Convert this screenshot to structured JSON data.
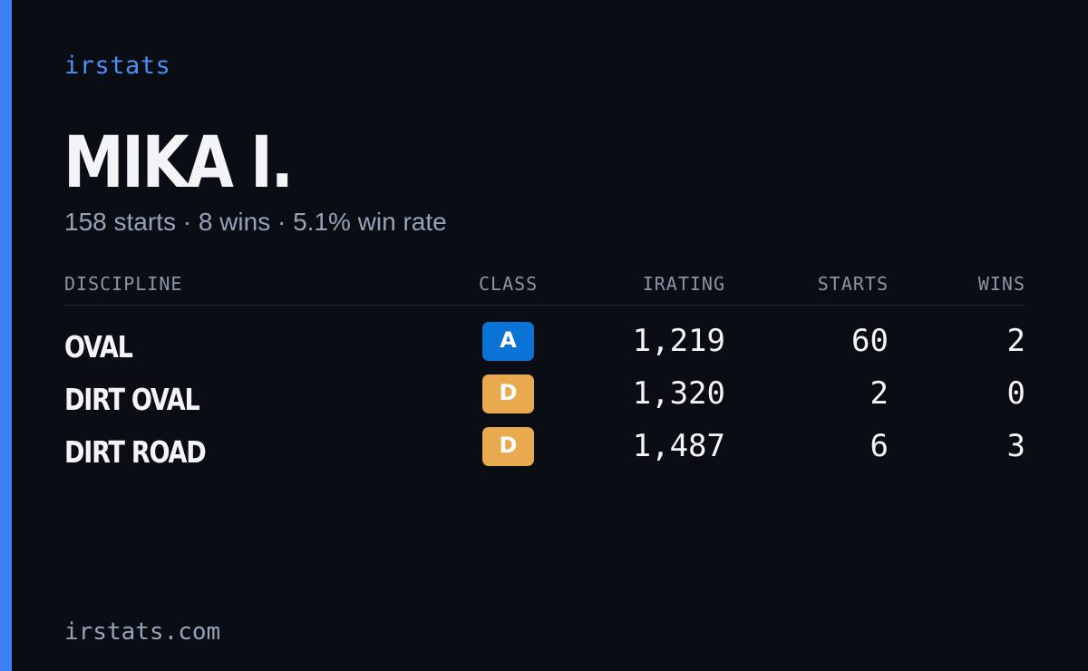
{
  "brand": "irstats",
  "player": {
    "name": "MIKA I.",
    "summary": "158 starts · 8 wins · 5.1% win rate"
  },
  "table": {
    "headers": {
      "discipline": "DISCIPLINE",
      "class": "CLASS",
      "irating": "IRATING",
      "starts": "STARTS",
      "wins": "WINS"
    },
    "rows": [
      {
        "discipline": "OVAL",
        "class": "A",
        "class_color": "#0b72d6",
        "irating": "1,219",
        "starts": "60",
        "wins": "2"
      },
      {
        "discipline": "DIRT OVAL",
        "class": "D",
        "class_color": "#e8a94f",
        "irating": "1,320",
        "starts": "2",
        "wins": "0"
      },
      {
        "discipline": "DIRT ROAD",
        "class": "D",
        "class_color": "#e8a94f",
        "irating": "1,487",
        "starts": "6",
        "wins": "3"
      }
    ]
  },
  "footer": {
    "url": "irstats.com"
  },
  "colors": {
    "background": "#0a0d14",
    "accent": "#3b82f6",
    "text_primary": "#f3f4f6",
    "text_muted": "#94a3b8"
  }
}
